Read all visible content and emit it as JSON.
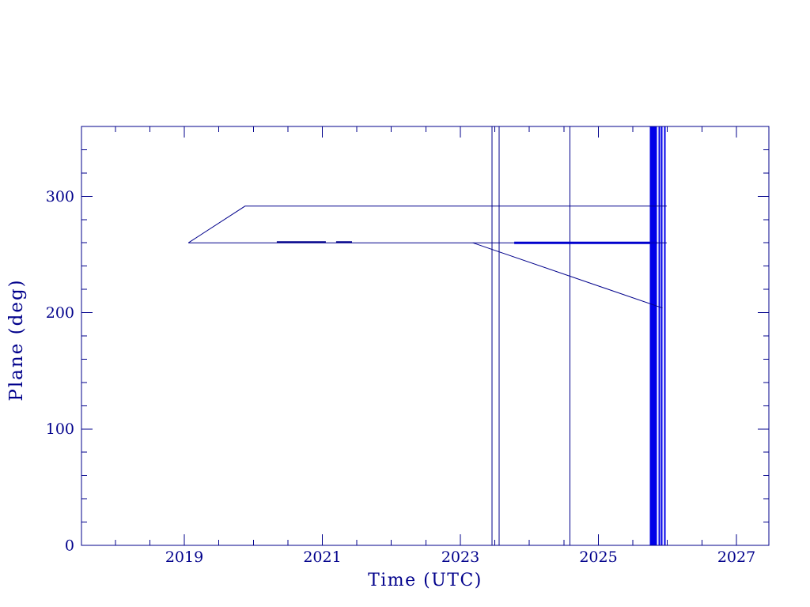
{
  "figure": {
    "background": "#ffffff",
    "description": "Navy-on-white scientific line plot of orbital plane angle versus time"
  },
  "chart_data": {
    "type": "line",
    "title": "",
    "xlabel": "Time (UTC)",
    "ylabel": "Plane (deg)",
    "xlim": [
      2017.51,
      2027.47
    ],
    "ylim": [
      0,
      360
    ],
    "x_labeled_ticks": [
      2019,
      2021,
      2023,
      2025,
      2027
    ],
    "x_tick_labels": [
      "2019",
      "2021",
      "2023",
      "2025",
      "2027"
    ],
    "x_minor_step": 0.5,
    "y_labeled_ticks": [
      0,
      100,
      200,
      300
    ],
    "y_tick_labels": [
      "0",
      "100",
      "200",
      "300"
    ],
    "y_minor_step": 20,
    "grid": false,
    "legend": null,
    "colors": {
      "axis": "#00008b",
      "line": "#00008b",
      "bold": "#0000cd",
      "event": "#0000e8"
    },
    "series": [
      {
        "name": "plane-rise-to-292",
        "color": "line",
        "width": 1,
        "points": [
          [
            2019.06,
            260
          ],
          [
            2019.88,
            291.5
          ],
          [
            2025.99,
            291.5
          ]
        ]
      },
      {
        "name": "plane-hold-260",
        "color": "line",
        "width": 1,
        "points": [
          [
            2019.06,
            260
          ],
          [
            2025.99,
            260
          ]
        ]
      },
      {
        "name": "bold-overlap-a",
        "color": "line",
        "width": 2,
        "points": [
          [
            2020.34,
            260.7
          ],
          [
            2021.05,
            260.7
          ]
        ]
      },
      {
        "name": "bold-overlap-b",
        "color": "line",
        "width": 2,
        "points": [
          [
            2021.2,
            260.7
          ],
          [
            2021.43,
            260.7
          ]
        ]
      },
      {
        "name": "bold-overlap-c",
        "color": "bold",
        "width": 3,
        "points": [
          [
            2023.78,
            260
          ],
          [
            2025.85,
            260
          ]
        ]
      },
      {
        "name": "plane-descent-204",
        "color": "line",
        "width": 1,
        "points": [
          [
            2023.18,
            260
          ],
          [
            2025.93,
            204
          ]
        ]
      }
    ],
    "vlines": [
      {
        "x": 2023.46,
        "color": "line",
        "width": 1
      },
      {
        "x": 2023.56,
        "color": "line",
        "width": 1
      },
      {
        "x": 2024.59,
        "color": "line",
        "width": 1
      },
      {
        "x": 2025.88,
        "color": "event",
        "width": 2
      },
      {
        "x": 2025.915,
        "color": "event",
        "width": 2
      },
      {
        "x": 2025.96,
        "color": "event",
        "width": 2
      }
    ],
    "bands": [
      {
        "x0": 2025.745,
        "x1": 2025.85,
        "color": "event"
      }
    ]
  }
}
